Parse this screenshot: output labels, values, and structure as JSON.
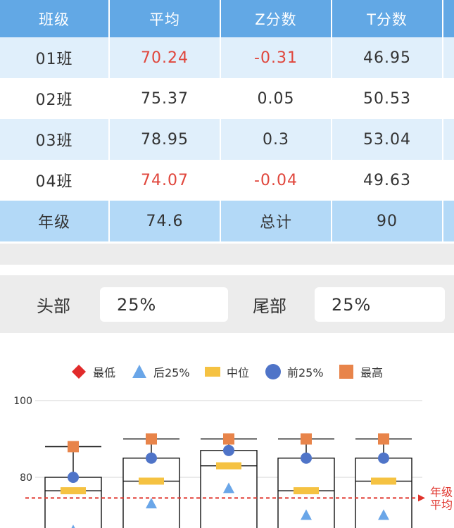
{
  "table": {
    "headers": [
      "班级",
      "平均",
      "Z分数",
      "T分数"
    ],
    "rows": [
      {
        "cls": "01班",
        "avg": "70.24",
        "z": "-0.31",
        "t": "46.95",
        "neg": true
      },
      {
        "cls": "02班",
        "avg": "75.37",
        "z": "0.05",
        "t": "50.53",
        "neg": false
      },
      {
        "cls": "03班",
        "avg": "78.95",
        "z": "0.3",
        "t": "53.04",
        "neg": false
      },
      {
        "cls": "04班",
        "avg": "74.07",
        "z": "-0.04",
        "t": "49.63",
        "neg": true
      }
    ],
    "total": {
      "label": "年级",
      "avg": "74.6",
      "total_label": "总计",
      "total_value": "90"
    }
  },
  "settings": {
    "head_label": "头部",
    "head_value": "25%",
    "tail_label": "尾部",
    "tail_value": "25%"
  },
  "colors": {
    "header_bg": "#62a8e5",
    "alt_row_bg": "#e0effb",
    "total_row_bg": "#b3d9f7",
    "negative": "#e0463c",
    "min_marker": "#e12b2b",
    "q1_marker": "#6aa6e8",
    "median_marker": "#f5c242",
    "q3_marker": "#4f74c8",
    "max_marker": "#e8844a",
    "grade_avg_line": "#e0332b"
  },
  "chart_data": {
    "type": "box",
    "legend": [
      {
        "name": "最低",
        "shape": "diamond-icon",
        "color": "#e12b2b"
      },
      {
        "name": "后25%",
        "shape": "triangle-icon",
        "color": "#6aa6e8"
      },
      {
        "name": "中位",
        "shape": "bar-icon",
        "color": "#f5c242"
      },
      {
        "name": "前25%",
        "shape": "circle-icon",
        "color": "#4f74c8"
      },
      {
        "name": "最高",
        "shape": "square-icon",
        "color": "#e8844a"
      }
    ],
    "y_ticks": [
      100,
      80
    ],
    "reference_line": {
      "value": 74.6,
      "label": "年级平均"
    },
    "boxes": [
      {
        "max": 88,
        "q3": 80,
        "median": 76.5,
        "q1": 66
      },
      {
        "max": 90,
        "q3": 85,
        "median": 79,
        "q1": 73
      },
      {
        "max": 90,
        "q3": 87,
        "median": 83,
        "q1": 77
      },
      {
        "max": 90,
        "q3": 85,
        "median": 76.5,
        "q1": 70
      },
      {
        "max": 90,
        "q3": 85,
        "median": 79,
        "q1": 70
      }
    ]
  }
}
